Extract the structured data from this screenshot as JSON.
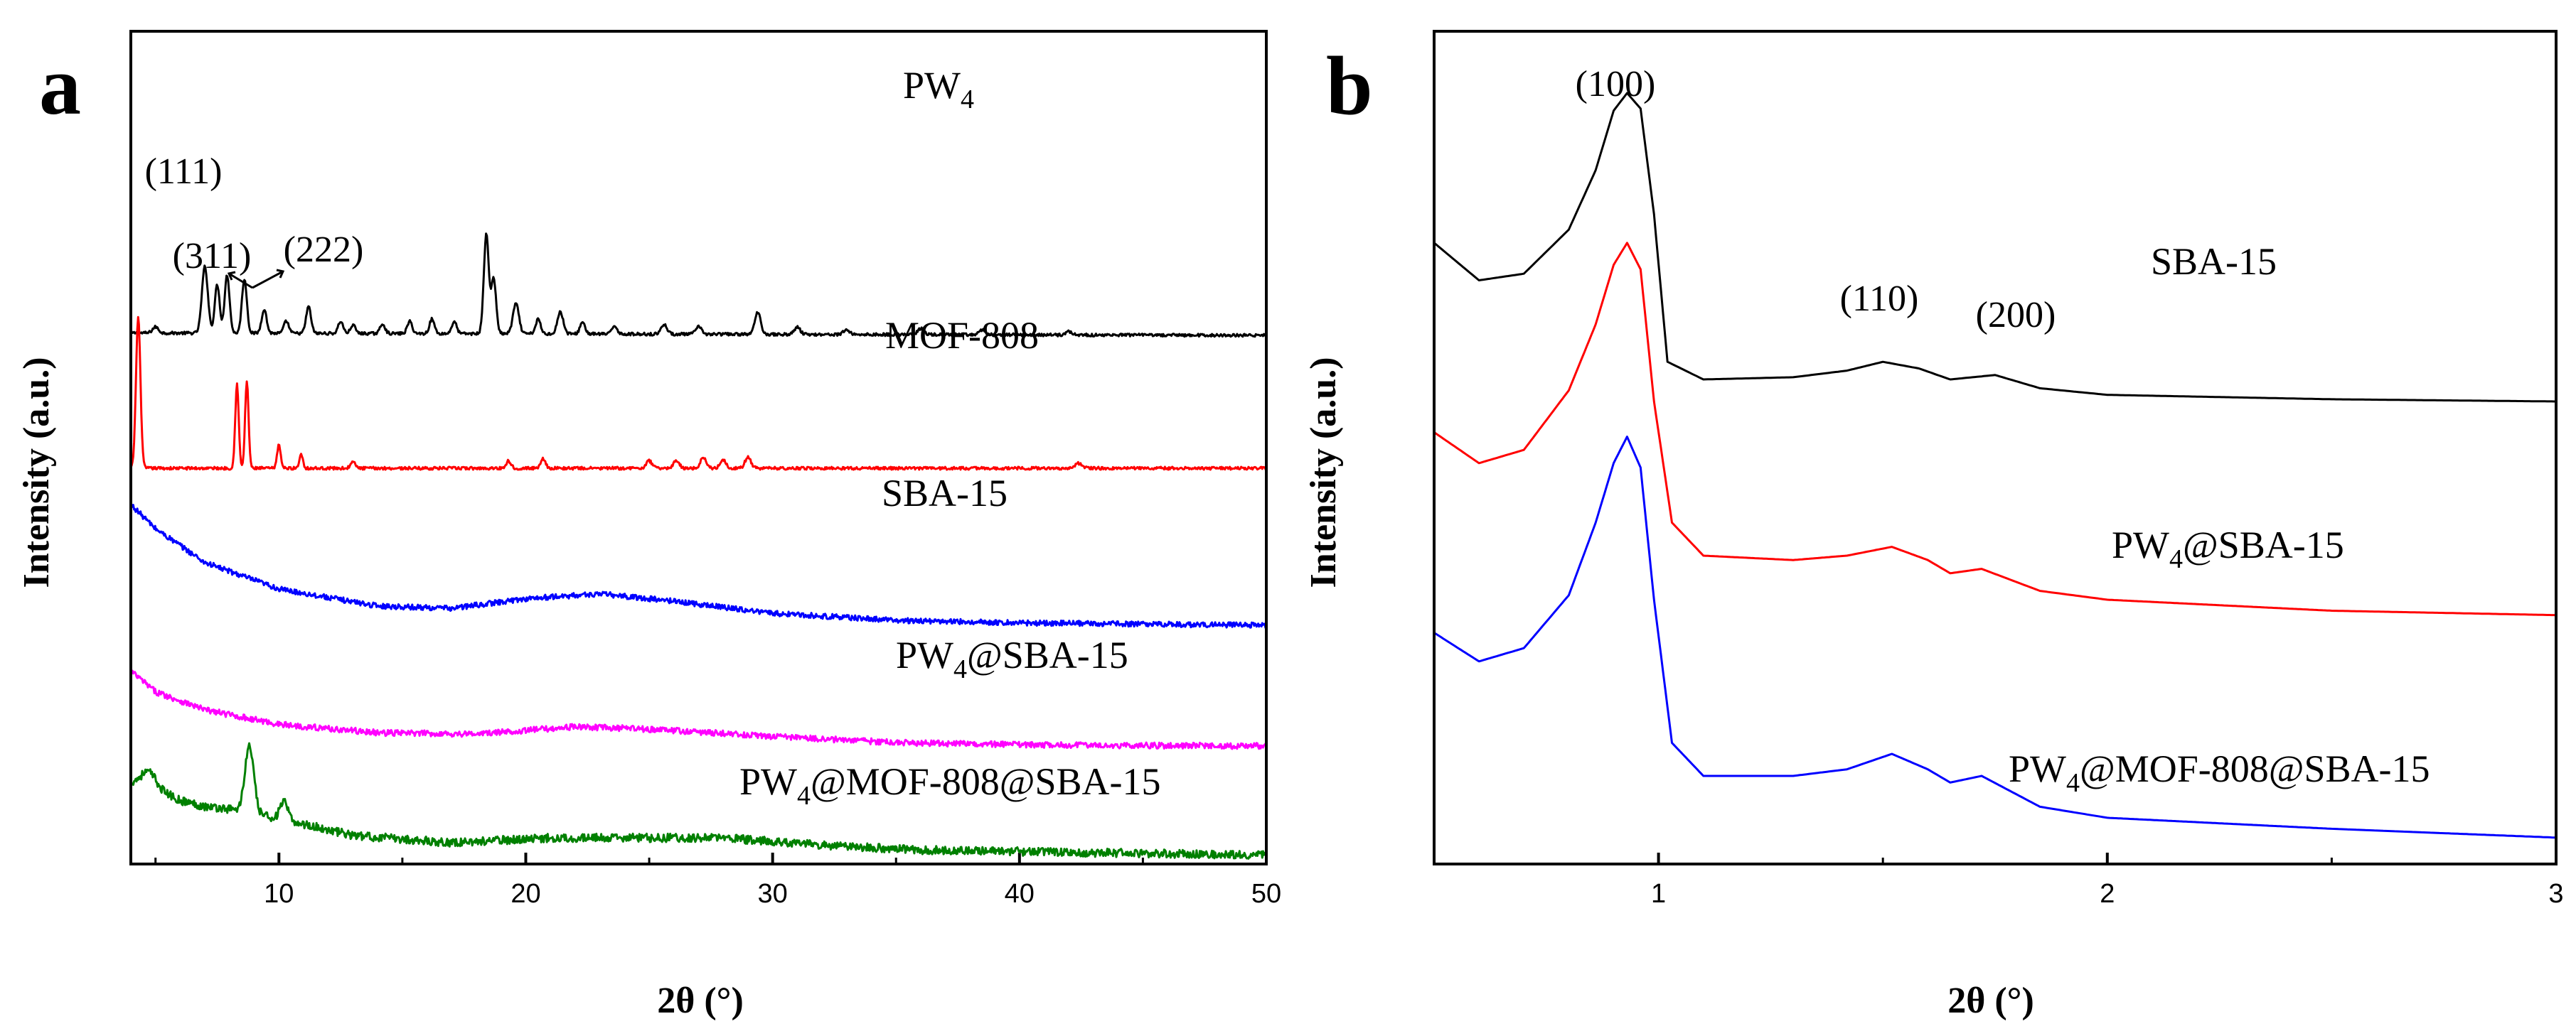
{
  "chart_data": [
    {
      "panel": "a",
      "type": "line",
      "title": "",
      "xlabel": "2θ (°)",
      "ylabel": "Intensity (a.u.)",
      "xlim": [
        4,
        50
      ],
      "xticks": [
        10,
        20,
        30,
        40,
        50
      ],
      "xtick_labels": [
        "10",
        "20",
        "30",
        "40",
        "50"
      ],
      "yticks_shown": false,
      "grid": false,
      "legend": "inline labels to the right of each trace",
      "series": [
        {
          "name": "PW4",
          "label_main": "PW",
          "label_sub": "4",
          "label_rest": "",
          "color": "#000000",
          "offset": 4.3,
          "noise": 0.012,
          "baseline": [
            [
              4,
              0.02
            ],
            [
              50,
              0.0
            ]
          ],
          "peaks": [
            [
              5.0,
              0.05,
              0.12
            ],
            [
              7.0,
              0.55,
              0.12
            ],
            [
              7.5,
              0.4,
              0.1
            ],
            [
              7.9,
              0.48,
              0.1
            ],
            [
              8.6,
              0.45,
              0.1
            ],
            [
              9.4,
              0.2,
              0.1
            ],
            [
              10.3,
              0.1,
              0.1
            ],
            [
              11.2,
              0.22,
              0.1
            ],
            [
              12.5,
              0.1,
              0.1
            ],
            [
              13.0,
              0.07,
              0.1
            ],
            [
              14.2,
              0.08,
              0.1
            ],
            [
              15.3,
              0.1,
              0.1
            ],
            [
              16.2,
              0.12,
              0.1
            ],
            [
              17.1,
              0.1,
              0.1
            ],
            [
              18.4,
              0.82,
              0.1
            ],
            [
              18.7,
              0.45,
              0.1
            ],
            [
              19.6,
              0.25,
              0.12
            ],
            [
              20.5,
              0.12,
              0.1
            ],
            [
              21.4,
              0.18,
              0.12
            ],
            [
              22.3,
              0.1,
              0.1
            ],
            [
              23.6,
              0.07,
              0.1
            ],
            [
              25.6,
              0.08,
              0.12
            ],
            [
              27.0,
              0.06,
              0.12
            ],
            [
              29.4,
              0.18,
              0.12
            ],
            [
              31.0,
              0.06,
              0.12
            ],
            [
              33.0,
              0.04,
              0.12
            ],
            [
              36.0,
              0.05,
              0.12
            ],
            [
              38.5,
              0.04,
              0.12
            ],
            [
              42.0,
              0.03,
              0.12
            ]
          ]
        },
        {
          "name": "MOF-808",
          "label_main": "MOF-808",
          "label_sub": "",
          "label_rest": "",
          "color": "#ff0000",
          "offset": 3.2,
          "noise": 0.012,
          "baseline": [
            [
              4,
              0.0
            ],
            [
              50,
              0.0
            ]
          ],
          "peaks": [
            [
              4.3,
              1.25,
              0.09
            ],
            [
              8.3,
              0.7,
              0.07
            ],
            [
              8.7,
              0.72,
              0.07
            ],
            [
              10.0,
              0.2,
              0.07
            ],
            [
              10.9,
              0.12,
              0.07
            ],
            [
              13.0,
              0.05,
              0.1
            ],
            [
              19.3,
              0.06,
              0.1
            ],
            [
              20.7,
              0.08,
              0.1
            ],
            [
              25.0,
              0.06,
              0.12
            ],
            [
              26.1,
              0.06,
              0.12
            ],
            [
              27.2,
              0.09,
              0.12
            ],
            [
              28.0,
              0.07,
              0.12
            ],
            [
              29.0,
              0.09,
              0.12
            ],
            [
              42.4,
              0.04,
              0.15
            ]
          ]
        },
        {
          "name": "SBA-15",
          "label_main": "SBA-15",
          "label_sub": "",
          "label_rest": "",
          "color": "#0000ff",
          "offset": 1.9,
          "noise": 0.022,
          "baseline": [
            [
              4,
              1.0
            ],
            [
              5,
              0.8
            ],
            [
              7,
              0.52
            ],
            [
              10,
              0.3
            ],
            [
              14,
              0.16
            ],
            [
              17,
              0.14
            ],
            [
              20,
              0.22
            ],
            [
              23,
              0.26
            ],
            [
              26,
              0.2
            ],
            [
              30,
              0.1
            ],
            [
              35,
              0.04
            ],
            [
              40,
              0.02
            ],
            [
              50,
              0.0
            ]
          ],
          "peaks": []
        },
        {
          "name": "PW4@SBA-15",
          "label_main": "PW",
          "label_sub": "4",
          "label_rest": "@SBA-15",
          "color": "#ff00ff",
          "offset": 0.9,
          "noise": 0.025,
          "baseline": [
            [
              4,
              0.62
            ],
            [
              5,
              0.45
            ],
            [
              7,
              0.3
            ],
            [
              10,
              0.18
            ],
            [
              14,
              0.11
            ],
            [
              18,
              0.1
            ],
            [
              22,
              0.16
            ],
            [
              25,
              0.14
            ],
            [
              30,
              0.08
            ],
            [
              35,
              0.03
            ],
            [
              40,
              0.01
            ],
            [
              50,
              0.0
            ]
          ],
          "peaks": []
        },
        {
          "name": "PW4@MOF-808@SBA-15",
          "label_main": "PW",
          "label_sub": "4",
          "label_rest": "@MOF-808@SBA-15",
          "color": "#008000",
          "offset": 0.0,
          "noise": 0.035,
          "baseline": [
            [
              4,
              0.6
            ],
            [
              5,
              0.55
            ],
            [
              6,
              0.45
            ],
            [
              7,
              0.4
            ],
            [
              8,
              0.38
            ],
            [
              10,
              0.3
            ],
            [
              13,
              0.16
            ],
            [
              17,
              0.1
            ],
            [
              21,
              0.14
            ],
            [
              25,
              0.14
            ],
            [
              28,
              0.14
            ],
            [
              32,
              0.08
            ],
            [
              36,
              0.04
            ],
            [
              42,
              0.02
            ],
            [
              50,
              0.0
            ]
          ],
          "peaks": [
            [
              4.7,
              0.12,
              0.3
            ],
            [
              8.8,
              0.55,
              0.18
            ],
            [
              10.2,
              0.15,
              0.15
            ]
          ]
        }
      ],
      "annotations": [
        {
          "text": "(111)",
          "x": 4.3
        },
        {
          "text": "(311)",
          "x": 8.3
        },
        {
          "text": "(222)",
          "x": 8.7
        }
      ]
    },
    {
      "panel": "b",
      "type": "line",
      "title": "",
      "xlabel": "2θ (°)",
      "ylabel": "Intensity (a.u.)",
      "xlim": [
        0.5,
        3.0
      ],
      "xticks": [
        1,
        2,
        3
      ],
      "xtick_labels": [
        "1",
        "2",
        "3"
      ],
      "yticks_shown": false,
      "grid": false,
      "legend": "inline labels to the right of each trace",
      "series": [
        {
          "name": "SBA-15",
          "label_main": "SBA-15",
          "label_sub": "",
          "label_rest": "",
          "color": "#000000",
          "offset": 2.0,
          "points": [
            [
              0.5,
              0.72
            ],
            [
              0.6,
              0.55
            ],
            [
              0.7,
              0.58
            ],
            [
              0.8,
              0.78
            ],
            [
              0.86,
              1.05
            ],
            [
              0.9,
              1.32
            ],
            [
              0.93,
              1.4
            ],
            [
              0.96,
              1.33
            ],
            [
              0.99,
              0.85
            ],
            [
              1.02,
              0.18
            ],
            [
              1.1,
              0.1
            ],
            [
              1.3,
              0.11
            ],
            [
              1.42,
              0.14
            ],
            [
              1.5,
              0.18
            ],
            [
              1.58,
              0.15
            ],
            [
              1.65,
              0.1
            ],
            [
              1.75,
              0.12
            ],
            [
              1.85,
              0.06
            ],
            [
              2.0,
              0.03
            ],
            [
              2.5,
              0.01
            ],
            [
              3.0,
              0.0
            ]
          ]
        },
        {
          "name": "PW4@SBA-15",
          "label_main": "PW",
          "label_sub": "4",
          "label_rest": "@SBA-15",
          "color": "#ff0000",
          "offset": 1.0,
          "points": [
            [
              0.5,
              0.86
            ],
            [
              0.6,
              0.72
            ],
            [
              0.7,
              0.78
            ],
            [
              0.8,
              1.05
            ],
            [
              0.86,
              1.35
            ],
            [
              0.9,
              1.62
            ],
            [
              0.93,
              1.72
            ],
            [
              0.96,
              1.6
            ],
            [
              0.99,
              1.0
            ],
            [
              1.03,
              0.45
            ],
            [
              1.1,
              0.3
            ],
            [
              1.3,
              0.28
            ],
            [
              1.42,
              0.3
            ],
            [
              1.52,
              0.34
            ],
            [
              1.6,
              0.28
            ],
            [
              1.65,
              0.22
            ],
            [
              1.72,
              0.24
            ],
            [
              1.85,
              0.14
            ],
            [
              2.0,
              0.1
            ],
            [
              2.5,
              0.05
            ],
            [
              3.0,
              0.03
            ]
          ]
        },
        {
          "name": "PW4@MOF-808@SBA-15",
          "label_main": "PW",
          "label_sub": "4",
          "label_rest": "@MOF-808@SBA-15",
          "color": "#0000ff",
          "offset": 0.0,
          "points": [
            [
              0.5,
              0.95
            ],
            [
              0.6,
              0.82
            ],
            [
              0.7,
              0.88
            ],
            [
              0.8,
              1.12
            ],
            [
              0.86,
              1.45
            ],
            [
              0.9,
              1.72
            ],
            [
              0.93,
              1.84
            ],
            [
              0.96,
              1.7
            ],
            [
              0.99,
              1.1
            ],
            [
              1.03,
              0.45
            ],
            [
              1.1,
              0.3
            ],
            [
              1.3,
              0.3
            ],
            [
              1.42,
              0.33
            ],
            [
              1.52,
              0.4
            ],
            [
              1.6,
              0.33
            ],
            [
              1.65,
              0.27
            ],
            [
              1.72,
              0.3
            ],
            [
              1.85,
              0.16
            ],
            [
              2.0,
              0.11
            ],
            [
              2.5,
              0.06
            ],
            [
              3.0,
              0.02
            ]
          ]
        }
      ],
      "annotations": [
        {
          "text": "(100)",
          "x": 0.93
        },
        {
          "text": "(110)",
          "x": 1.52
        },
        {
          "text": "(200)",
          "x": 1.72
        }
      ]
    }
  ],
  "panels": {
    "a": {
      "letter": "a"
    },
    "b": {
      "letter": "b"
    }
  }
}
